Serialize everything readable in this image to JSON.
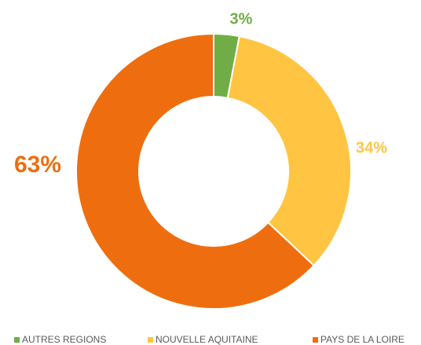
{
  "chart_data": {
    "type": "donut",
    "categories": [
      "AUTRES REGIONS",
      "NOUVELLE AQUITAINE",
      "PAYS DE LA LOIRE"
    ],
    "values": [
      3,
      34,
      63
    ],
    "value_labels": [
      "3%",
      "34%",
      "63%"
    ],
    "colors": [
      "#70ad47",
      "#ffc542",
      "#ee6e0f"
    ],
    "legend": "bottom"
  }
}
